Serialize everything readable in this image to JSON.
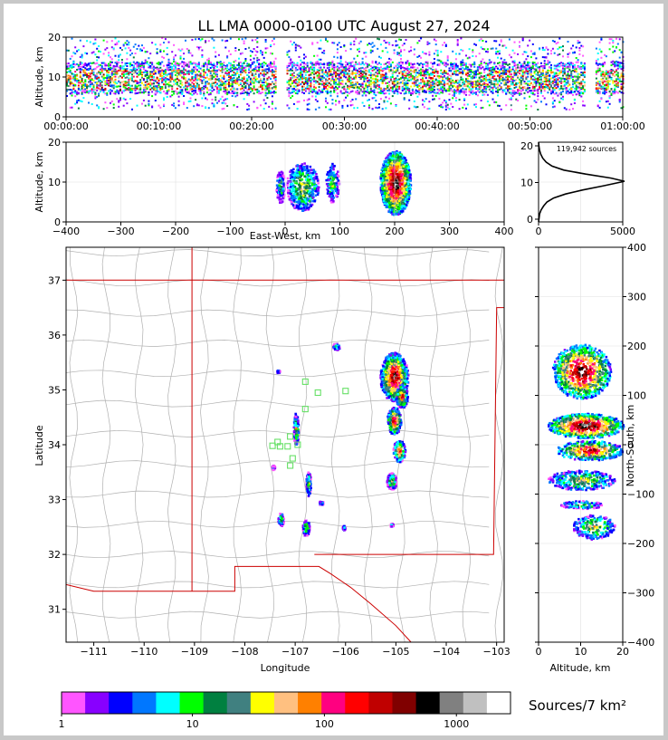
{
  "colors": {
    "frame": "#c8c8c8",
    "state_border": "#cc0000",
    "county_line": "#b0b0b0",
    "station_marker": "#66e066",
    "source_palette": [
      "#ff55ff",
      "#8800ff",
      "#0000ff",
      "#0077ff",
      "#00ffff",
      "#00ff00",
      "#008040",
      "#408080",
      "#ffff00",
      "#ffc080",
      "#ff8000",
      "#ff0080",
      "#ff0000",
      "#c00000",
      "#800000",
      "#000000",
      "#808080",
      "#c0c0c0",
      "#ffffff"
    ]
  },
  "chart_data": [
    {
      "id": "time_altitude",
      "type": "heatmap",
      "title": "LL LMA 0000-0100 UTC August 27, 2024",
      "xlabel": "",
      "ylabel": "Altitude, km",
      "xlim": [
        0,
        60
      ],
      "ylim": [
        0,
        20
      ],
      "xticks": [
        "00:00:00",
        "00:10:00",
        "00:20:00",
        "00:30:00",
        "00:40:00",
        "00:50:00",
        "01:00:00"
      ],
      "yticks": [
        "0",
        "10",
        "20"
      ],
      "gaps_minutes": [
        [
          22.6,
          23.6
        ],
        [
          55.8,
          57.0
        ]
      ],
      "core_altitude_km": [
        6,
        14
      ]
    },
    {
      "id": "ew_altitude",
      "type": "heatmap",
      "xlabel": "East-West, km",
      "ylabel": "Altitude, km",
      "xlim": [
        -400,
        400
      ],
      "ylim": [
        0,
        20
      ],
      "xticks": [
        "−400",
        "−300",
        "−200",
        "−100",
        "0",
        "100",
        "200",
        "300",
        "400"
      ],
      "yticks": [
        "0",
        "10",
        "20"
      ]
    },
    {
      "id": "altitude_histogram",
      "type": "line",
      "annotation": "119,942 sources",
      "xlim": [
        0,
        5000
      ],
      "ylim": [
        0,
        20
      ],
      "xticks": [
        "0",
        "5000"
      ],
      "yticks": [
        "0",
        "10",
        "20"
      ],
      "points": [
        [
          0,
          0
        ],
        [
          30,
          1
        ],
        [
          60,
          2
        ],
        [
          150,
          3
        ],
        [
          300,
          4
        ],
        [
          500,
          5
        ],
        [
          900,
          6
        ],
        [
          1600,
          7
        ],
        [
          2600,
          8
        ],
        [
          3800,
          9
        ],
        [
          4900,
          10
        ],
        [
          5100,
          10.2
        ],
        [
          4300,
          11
        ],
        [
          2800,
          12
        ],
        [
          1500,
          13
        ],
        [
          800,
          14
        ],
        [
          450,
          15
        ],
        [
          250,
          16
        ],
        [
          130,
          17
        ],
        [
          60,
          18
        ],
        [
          20,
          19
        ],
        [
          0,
          20
        ]
      ]
    },
    {
      "id": "plan_view",
      "type": "scatter",
      "xlabel": "Longitude",
      "ylabel": "Latitude",
      "xlim": [
        -111.55,
        -102.85
      ],
      "ylim": [
        30.4,
        37.6
      ],
      "xticks": [
        "−111",
        "−110",
        "−109",
        "−108",
        "−107",
        "−106",
        "−105",
        "−104",
        "−103"
      ],
      "yticks": [
        "31",
        "32",
        "33",
        "34",
        "35",
        "36",
        "37"
      ],
      "storm_cells": [
        {
          "lon": -105.05,
          "lat": 35.25,
          "rlon": 0.28,
          "rlat": 0.45,
          "peak": 0.95
        },
        {
          "lon": -104.9,
          "lat": 34.9,
          "rlon": 0.12,
          "rlat": 0.22,
          "peak": 0.8
        },
        {
          "lon": -105.05,
          "lat": 34.45,
          "rlon": 0.14,
          "rlat": 0.25,
          "peak": 0.85
        },
        {
          "lon": -104.95,
          "lat": 33.9,
          "rlon": 0.12,
          "rlat": 0.2,
          "peak": 0.75
        },
        {
          "lon": -105.1,
          "lat": 33.35,
          "rlon": 0.1,
          "rlat": 0.15,
          "peak": 0.55
        },
        {
          "lon": -107.0,
          "lat": 34.3,
          "rlon": 0.05,
          "rlat": 0.3,
          "peak": 0.55
        },
        {
          "lon": -106.75,
          "lat": 33.3,
          "rlon": 0.05,
          "rlat": 0.22,
          "peak": 0.5
        },
        {
          "lon": -106.8,
          "lat": 32.5,
          "rlon": 0.07,
          "rlat": 0.15,
          "peak": 0.5
        },
        {
          "lon": -107.3,
          "lat": 32.65,
          "rlon": 0.06,
          "rlat": 0.12,
          "peak": 0.45
        },
        {
          "lon": -106.2,
          "lat": 35.8,
          "rlon": 0.07,
          "rlat": 0.06,
          "peak": 0.4
        },
        {
          "lon": -106.5,
          "lat": 32.95,
          "rlon": 0.04,
          "rlat": 0.04,
          "peak": 0.4
        },
        {
          "lon": -106.05,
          "lat": 32.5,
          "rlon": 0.03,
          "rlat": 0.04,
          "peak": 0.35
        },
        {
          "lon": -107.35,
          "lat": 35.35,
          "rlon": 0.03,
          "rlat": 0.03,
          "peak": 0.35
        },
        {
          "lon": -107.45,
          "lat": 33.6,
          "rlon": 0.03,
          "rlat": 0.04,
          "peak": 0.3
        },
        {
          "lon": -105.1,
          "lat": 32.55,
          "rlon": 0.03,
          "rlat": 0.03,
          "peak": 0.3
        }
      ],
      "stations": [
        [
          -106.8,
          35.15
        ],
        [
          -106.55,
          34.95
        ],
        [
          -106.0,
          34.98
        ],
        [
          -106.8,
          34.65
        ],
        [
          -107.1,
          34.15
        ],
        [
          -107.35,
          34.05
        ],
        [
          -107.45,
          33.98
        ],
        [
          -107.3,
          33.97
        ],
        [
          -107.15,
          33.97
        ],
        [
          -106.95,
          34.0
        ],
        [
          -107.05,
          33.75
        ],
        [
          -107.1,
          33.62
        ]
      ]
    },
    {
      "id": "altitude_ns",
      "type": "heatmap",
      "xlabel": "Altitude, km",
      "ylabel": "North-South, km",
      "xlim": [
        0,
        20
      ],
      "ylim": [
        -400,
        400
      ],
      "xticks": [
        "0",
        "10",
        "20"
      ],
      "yticks": [
        "−400",
        "−300",
        "−200",
        "−100",
        "0",
        "100",
        "200",
        "300",
        "400"
      ]
    }
  ],
  "colorbar": {
    "label": "Sources/7 km²",
    "ticks": [
      "1",
      "10",
      "100",
      "1000"
    ]
  }
}
